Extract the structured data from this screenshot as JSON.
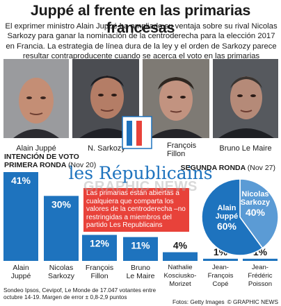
{
  "header": {
    "title": "Juppé al frente en las primarias francesas",
    "intro": "El exprimer ministro Alain Juppé ha ampliado su ventaja sobre su rival Nicolas Sarkozy para ganar la nominación de la centroderecha para la elección 2017 en Francia. La estrategia de línea dura de la ley y el orden de Sarkozy parece resultar contraproducente cuando se acerca el voto en las primarias"
  },
  "photos": [
    {
      "name": "Alain Juppé"
    },
    {
      "name": "N. Sarkozy"
    },
    {
      "name": "François Fillon"
    },
    {
      "name": "Bruno Le Maire"
    }
  ],
  "logo": {
    "text": "les Républicains"
  },
  "round1": {
    "heading_line1": "INTENCIÓN DE VOTO",
    "heading_line2": "PRIMERA RONDA",
    "date": "(Nov 20)"
  },
  "round2": {
    "heading": "SEGUNDA RONDA",
    "date": "(Nov 27)"
  },
  "note": "Las primarias están abiertas a cualquiera que comparta los valores de la centroderecha –no restringidas a miembros del partido Les Republicains",
  "chart_data": [
    {
      "type": "bar",
      "categories": [
        "Alain Juppé",
        "Nicolas Sarkozy",
        "François Fillon",
        "Bruno Le Maire",
        "Nathalie Kosciusko-Morizet",
        "Jean-François Copé",
        "Jean-Frédéric Poisson"
      ],
      "values": [
        41,
        30,
        12,
        11,
        4,
        1,
        1
      ],
      "value_labels": [
        "41%",
        "30%",
        "12%",
        "11%",
        "4%",
        "1%",
        "1%"
      ],
      "category_lines": [
        [
          "Alain",
          "Juppé"
        ],
        [
          "Nicolas",
          "Sarkozy"
        ],
        [
          "François",
          "Fillon"
        ],
        [
          "Bruno",
          "Le Maire"
        ],
        [
          "Nathalie",
          "Kosciusko-",
          "Morizet"
        ],
        [
          "Jean-",
          "François",
          "Copé"
        ],
        [
          "Jean-",
          "Frédéric",
          "Poisson"
        ]
      ],
      "ylim": [
        0,
        41
      ],
      "colors": {
        "bar": "#1e73be",
        "small_line": "#1e73be"
      }
    },
    {
      "type": "pie",
      "labels": [
        "Alain Juppé",
        "Nicolas Sarkozy"
      ],
      "values": [
        60,
        40
      ],
      "value_labels": [
        "60%",
        "40%"
      ],
      "colors": [
        "#1e73be",
        "#5b9bd5"
      ]
    }
  ],
  "footer": {
    "source_line1": "Sondeo Ipsos, Cevipof, Le Monde de 17.047 votantes entre",
    "source_line2": "octubre 14-19. Margen de error ± 0,8-2,9 puntos",
    "credit": "Fotos: Getty Images",
    "agency": "© GRAPHIC NEWS"
  },
  "watermark": "GRAPHIC NEWS"
}
